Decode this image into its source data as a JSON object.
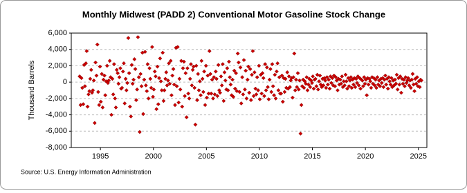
{
  "chart_data": {
    "type": "scatter",
    "title": "Monthly Midwest (PADD 2) Conventional Motor Gasoline Stock Change",
    "y_label": "Thousand Barrels",
    "source": "Source: U.S. Energy Information Administration",
    "color": "#cc0000",
    "grid": true,
    "xlim": [
      1992.25,
      2025.8
    ],
    "xticks": [
      1995,
      2000,
      2005,
      2010,
      2015,
      2020,
      2025
    ],
    "ylim": [
      -8000,
      6000
    ],
    "yticks": [
      {
        "value": -8000,
        "label": "-8,000"
      },
      {
        "value": -6000,
        "label": "-6,000"
      },
      {
        "value": -4000,
        "label": "-4,000"
      },
      {
        "value": -2000,
        "label": "-2,000"
      },
      0,
      {
        "value": 2000,
        "label": "2,000"
      },
      {
        "value": 4000,
        "label": "4,000"
      },
      {
        "value": 6000,
        "label": "6,000"
      }
    ],
    "x": [
      1993.04,
      1993.13,
      1993.21,
      1993.29,
      1993.38,
      1993.46,
      1993.54,
      1993.63,
      1993.71,
      1993.79,
      1993.88,
      1993.96,
      1994.04,
      1994.13,
      1994.21,
      1994.29,
      1994.38,
      1994.46,
      1994.54,
      1994.63,
      1994.71,
      1994.79,
      1994.88,
      1994.96,
      1995.04,
      1995.13,
      1995.21,
      1995.29,
      1995.38,
      1995.46,
      1995.54,
      1995.63,
      1995.71,
      1995.79,
      1995.88,
      1995.96,
      1996.04,
      1996.13,
      1996.21,
      1996.29,
      1996.38,
      1996.46,
      1996.54,
      1996.63,
      1996.71,
      1996.79,
      1996.88,
      1996.96,
      1997.04,
      1997.13,
      1997.21,
      1997.29,
      1997.38,
      1997.46,
      1997.54,
      1997.63,
      1997.71,
      1997.79,
      1997.88,
      1997.96,
      1998.04,
      1998.13,
      1998.21,
      1998.29,
      1998.38,
      1998.46,
      1998.54,
      1998.63,
      1998.71,
      1998.79,
      1998.88,
      1998.96,
      1999.04,
      1999.13,
      1999.21,
      1999.29,
      1999.38,
      1999.46,
      1999.54,
      1999.63,
      1999.71,
      1999.79,
      1999.88,
      1999.96,
      2000.04,
      2000.13,
      2000.21,
      2000.29,
      2000.38,
      2000.46,
      2000.54,
      2000.63,
      2000.71,
      2000.79,
      2000.88,
      2000.96,
      2001.04,
      2001.13,
      2001.21,
      2001.29,
      2001.38,
      2001.46,
      2001.54,
      2001.63,
      2001.71,
      2001.79,
      2001.88,
      2001.96,
      2002.04,
      2002.13,
      2002.21,
      2002.29,
      2002.38,
      2002.46,
      2002.54,
      2002.63,
      2002.71,
      2002.79,
      2002.88,
      2002.96,
      2003.04,
      2003.13,
      2003.21,
      2003.29,
      2003.38,
      2003.46,
      2003.54,
      2003.63,
      2003.71,
      2003.79,
      2003.88,
      2003.96,
      2004.04,
      2004.13,
      2004.21,
      2004.29,
      2004.38,
      2004.46,
      2004.54,
      2004.63,
      2004.71,
      2004.79,
      2004.88,
      2004.96,
      2005.04,
      2005.13,
      2005.21,
      2005.29,
      2005.38,
      2005.46,
      2005.54,
      2005.63,
      2005.71,
      2005.79,
      2005.88,
      2005.96,
      2006.04,
      2006.13,
      2006.21,
      2006.29,
      2006.38,
      2006.46,
      2006.54,
      2006.63,
      2006.71,
      2006.79,
      2006.88,
      2006.96,
      2007.04,
      2007.13,
      2007.21,
      2007.29,
      2007.38,
      2007.46,
      2007.54,
      2007.63,
      2007.71,
      2007.79,
      2007.88,
      2007.96,
      2008.04,
      2008.13,
      2008.21,
      2008.29,
      2008.38,
      2008.46,
      2008.54,
      2008.63,
      2008.71,
      2008.79,
      2008.88,
      2008.96,
      2009.04,
      2009.13,
      2009.21,
      2009.29,
      2009.38,
      2009.46,
      2009.54,
      2009.63,
      2009.71,
      2009.79,
      2009.88,
      2009.96,
      2010.04,
      2010.13,
      2010.21,
      2010.29,
      2010.38,
      2010.46,
      2010.54,
      2010.63,
      2010.71,
      2010.79,
      2010.88,
      2010.96,
      2011.04,
      2011.13,
      2011.21,
      2011.29,
      2011.38,
      2011.46,
      2011.54,
      2011.63,
      2011.71,
      2011.79,
      2011.88,
      2011.96,
      2012.04,
      2012.13,
      2012.21,
      2012.29,
      2012.38,
      2012.46,
      2012.54,
      2012.63,
      2012.71,
      2012.79,
      2012.88,
      2012.96,
      2013.04,
      2013.13,
      2013.21,
      2013.29,
      2013.38,
      2013.46,
      2013.54,
      2013.63,
      2013.71,
      2013.79,
      2013.88,
      2013.96,
      2014.04,
      2014.13,
      2014.21,
      2014.29,
      2014.38,
      2014.46,
      2014.54,
      2014.63,
      2014.71,
      2014.79,
      2014.88,
      2014.96,
      2015.04,
      2015.13,
      2015.21,
      2015.29,
      2015.38,
      2015.46,
      2015.54,
      2015.63,
      2015.71,
      2015.79,
      2015.88,
      2015.96,
      2016.04,
      2016.13,
      2016.21,
      2016.29,
      2016.38,
      2016.46,
      2016.54,
      2016.63,
      2016.71,
      2016.79,
      2016.88,
      2016.96,
      2017.04,
      2017.13,
      2017.21,
      2017.29,
      2017.38,
      2017.46,
      2017.54,
      2017.63,
      2017.71,
      2017.79,
      2017.88,
      2017.96,
      2018.04,
      2018.13,
      2018.21,
      2018.29,
      2018.38,
      2018.46,
      2018.54,
      2018.63,
      2018.71,
      2018.79,
      2018.88,
      2018.96,
      2019.04,
      2019.13,
      2019.21,
      2019.29,
      2019.38,
      2019.46,
      2019.54,
      2019.63,
      2019.71,
      2019.79,
      2019.88,
      2019.96,
      2020.04,
      2020.13,
      2020.21,
      2020.29,
      2020.38,
      2020.46,
      2020.54,
      2020.63,
      2020.71,
      2020.79,
      2020.88,
      2020.96,
      2021.04,
      2021.13,
      2021.21,
      2021.29,
      2021.38,
      2021.46,
      2021.54,
      2021.63,
      2021.71,
      2021.79,
      2021.88,
      2021.96,
      2022.04,
      2022.13,
      2022.21,
      2022.29,
      2022.38,
      2022.46,
      2022.54,
      2022.63,
      2022.71,
      2022.79,
      2022.88,
      2022.96,
      2023.04,
      2023.13,
      2023.21,
      2023.29,
      2023.38,
      2023.46,
      2023.54,
      2023.63,
      2023.71,
      2023.79,
      2023.88,
      2023.96,
      2024.04,
      2024.13,
      2024.21,
      2024.29,
      2024.38,
      2024.46,
      2024.54,
      2024.63,
      2024.71,
      2024.79,
      2024.88,
      2024.96,
      2025.04,
      2025.13,
      2025.21,
      2025.29
    ],
    "values": [
      700,
      -2800,
      500,
      -700,
      -2700,
      2100,
      -500,
      2300,
      3800,
      -3000,
      -1500,
      -1100,
      400,
      1500,
      -1300,
      -1000,
      200,
      -5000,
      2400,
      800,
      4600,
      -1200,
      -2800,
      1900,
      -2400,
      1000,
      -3100,
      300,
      800,
      -1600,
      100,
      2000,
      -100,
      200,
      2600,
      600,
      -4000,
      400,
      -1500,
      2200,
      -2000,
      -3100,
      1500,
      1100,
      -200,
      600,
      1700,
      -800,
      -700,
      1300,
      2300,
      -2600,
      400,
      -1000,
      -100,
      5400,
      1100,
      -3000,
      -4200,
      2100,
      -200,
      300,
      2800,
      1600,
      -2200,
      -900,
      5500,
      600,
      -6100,
      1000,
      -500,
      3600,
      -3900,
      300,
      3700,
      -400,
      -1100,
      2200,
      -2000,
      1700,
      400,
      -700,
      4300,
      -1800,
      -900,
      1300,
      700,
      -3300,
      1900,
      -2700,
      500,
      2900,
      100,
      -1000,
      3600,
      -2300,
      -1000,
      400,
      1200,
      -400,
      200,
      2300,
      -200,
      2600,
      -1600,
      800,
      1600,
      -300,
      -2800,
      4200,
      -500,
      4300,
      -2500,
      400,
      -900,
      2600,
      -3000,
      1700,
      2500,
      -1700,
      1100,
      -4300,
      1700,
      -1400,
      -2000,
      400,
      2200,
      -400,
      1500,
      1900,
      -700,
      -5200,
      2000,
      -2200,
      1000,
      -1000,
      100,
      -1600,
      2600,
      400,
      -1200,
      1300,
      -2800,
      2000,
      -1900,
      800,
      -1400,
      3800,
      1000,
      -1400,
      300,
      -2000,
      600,
      -1500,
      1300,
      400,
      -1700,
      2100,
      -1000,
      -1300,
      700,
      -400,
      2200,
      -2300,
      1200,
      200,
      -900,
      1700,
      -1000,
      2500,
      600,
      -300,
      -1600,
      300,
      -1800,
      1400,
      -800,
      1100,
      -1100,
      3500,
      2400,
      -1200,
      1800,
      -2600,
      600,
      -1500,
      2700,
      -900,
      1400,
      -2000,
      300,
      1900,
      -1300,
      1600,
      -2200,
      900,
      3800,
      -1700,
      1200,
      -800,
      -1500,
      600,
      -1000,
      2000,
      -2100,
      900,
      -1400,
      1100,
      500,
      -1700,
      2200,
      -1000,
      1800,
      -600,
      -2100,
      300,
      1600,
      -1200,
      2200,
      -500,
      -1600,
      900,
      -2000,
      1300,
      2300,
      -1000,
      600,
      -1400,
      -1400,
      800,
      -2400,
      500,
      -1200,
      400,
      -700,
      1200,
      -800,
      700,
      -600,
      200,
      500,
      -1900,
      600,
      3500,
      -1000,
      300,
      -600,
      1100,
      -900,
      200,
      -6300,
      -2800,
      -500,
      300,
      -700,
      100,
      -200,
      600,
      -1000,
      -300,
      400,
      -600,
      200,
      -100,
      700,
      -800,
      300,
      400,
      -500,
      900,
      -900,
      100,
      800,
      -300,
      -600,
      400,
      -400,
      500,
      200,
      -700,
      600,
      -300,
      300,
      -800,
      700,
      -100,
      500,
      -400,
      800,
      -500,
      600,
      200,
      -1000,
      400,
      -300,
      300,
      -200,
      700,
      -600,
      100,
      -400,
      900,
      100,
      -800,
      500,
      -500,
      200,
      600,
      -700,
      300,
      -300,
      500,
      -600,
      400,
      -100,
      700,
      -400,
      500,
      -800,
      300,
      200,
      -500,
      600,
      -200,
      300,
      -1600,
      500,
      -300,
      400,
      100,
      -700,
      600,
      -200,
      500,
      -400,
      300,
      -700,
      600,
      -300,
      200,
      -500,
      400,
      -100,
      500,
      -600,
      300,
      800,
      -300,
      400,
      -800,
      600,
      100,
      -300,
      500,
      -600,
      200,
      -400,
      300,
      -200,
      900,
      -900,
      500,
      -300,
      700,
      -1300,
      400,
      -200,
      300,
      -500,
      600,
      -100,
      200,
      500,
      -400,
      200,
      -700,
      300,
      1000,
      -300,
      -1100,
      400,
      -200,
      600,
      -500,
      100,
      -600,
      300,
      200
    ]
  }
}
